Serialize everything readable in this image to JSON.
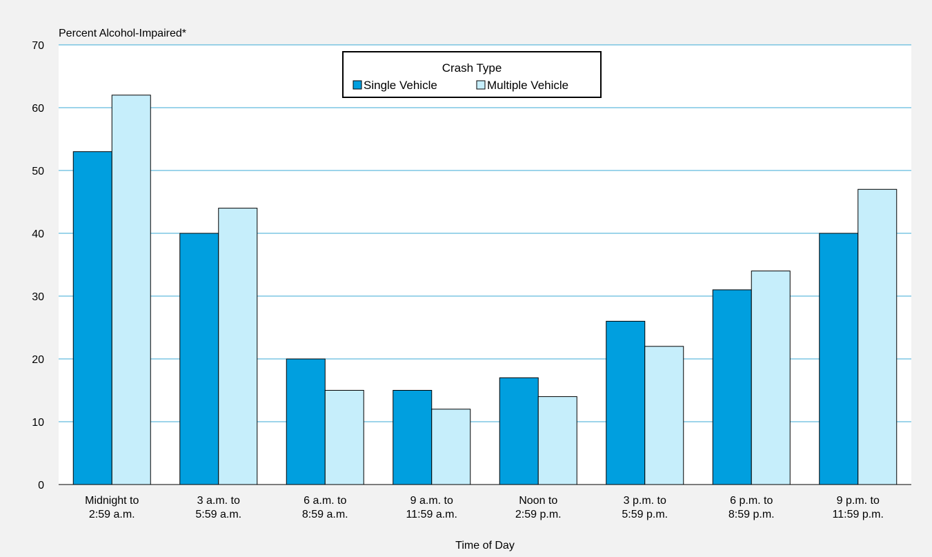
{
  "chart_data": {
    "type": "bar",
    "ylabel": "Percent Alcohol-Impaired*",
    "xlabel": "Time of Day",
    "ylim": [
      0,
      70
    ],
    "yticks": [
      0,
      10,
      20,
      30,
      40,
      50,
      60,
      70
    ],
    "grid": true,
    "legend": {
      "title": "Crash Type",
      "placement": "top-center"
    },
    "categories": [
      [
        "Midnight to",
        "2:59 a.m."
      ],
      [
        "3 a.m. to",
        "5:59 a.m."
      ],
      [
        "6 a.m. to",
        "8:59 a.m."
      ],
      [
        "9 a.m. to",
        "11:59 a.m."
      ],
      [
        "Noon to",
        "2:59 p.m."
      ],
      [
        "3 p.m. to",
        "5:59 p.m."
      ],
      [
        "6 p.m. to",
        "8:59 p.m."
      ],
      [
        "9 p.m. to",
        "11:59 p.m."
      ]
    ],
    "series": [
      {
        "name": "Single Vehicle",
        "color": "#009fdf",
        "values": [
          53,
          40,
          20,
          15,
          17,
          26,
          31,
          40
        ]
      },
      {
        "name": "Multiple Vehicle",
        "color": "#c6eefb",
        "values": [
          62,
          44,
          15,
          12,
          14,
          22,
          34,
          47
        ]
      }
    ],
    "gridline_color": "#38a9d6"
  }
}
